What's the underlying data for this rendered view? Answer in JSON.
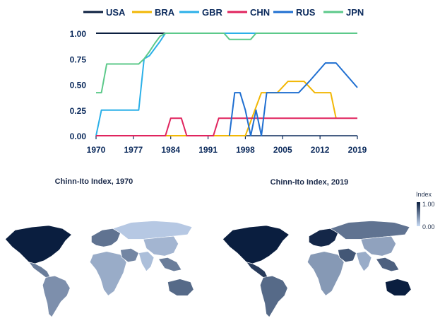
{
  "chart_data": [
    {
      "type": "line",
      "title": "",
      "xlabel": "",
      "ylabel": "",
      "xlim": [
        1970,
        2019
      ],
      "ylim": [
        0,
        1
      ],
      "grid": false,
      "legend_position": "top",
      "x_ticks": [
        "1970",
        "1977",
        "1984",
        "1991",
        "1998",
        "2005",
        "2012",
        "2019"
      ],
      "y_ticks": [
        "0.00",
        "0.25",
        "0.50",
        "0.75",
        "1.00"
      ],
      "series": [
        {
          "name": "USA",
          "color": "#0b1f3f",
          "points": [
            [
              1970,
              1
            ],
            [
              2019,
              1
            ]
          ]
        },
        {
          "name": "BRA",
          "color": "#f2b705",
          "points": [
            [
              1970,
              0
            ],
            [
              1998,
              0
            ],
            [
              2001,
              0.42
            ],
            [
              2004,
              0.42
            ],
            [
              2006,
              0.53
            ],
            [
              2009,
              0.53
            ],
            [
              2011,
              0.42
            ],
            [
              2014,
              0.42
            ],
            [
              2015,
              0.17
            ]
          ]
        },
        {
          "name": "GBR",
          "color": "#2bb0e8",
          "points": [
            [
              1970,
              0
            ],
            [
              1971,
              0.25
            ],
            [
              1978,
              0.25
            ],
            [
              1979,
              0.75
            ],
            [
              1980,
              0.78
            ],
            [
              1982,
              0.92
            ],
            [
              1983,
              1
            ],
            [
              2019,
              1
            ]
          ]
        },
        {
          "name": "CHN",
          "color": "#e0245e",
          "points": [
            [
              1970,
              0
            ],
            [
              1983,
              0
            ],
            [
              1984,
              0.17
            ],
            [
              1986,
              0.17
            ],
            [
              1987,
              0
            ],
            [
              1992,
              0
            ],
            [
              1993,
              0.17
            ],
            [
              2019,
              0.17
            ]
          ]
        },
        {
          "name": "RUS",
          "color": "#1f6fd1",
          "points": [
            [
              1995,
              0
            ],
            [
              1996,
              0.42
            ],
            [
              1997,
              0.42
            ],
            [
              1998,
              0.25
            ],
            [
              1999,
              0
            ],
            [
              2000,
              0.25
            ],
            [
              2001,
              0
            ],
            [
              2002,
              0.42
            ],
            [
              2008,
              0.42
            ],
            [
              2010,
              0.53
            ],
            [
              2013,
              0.71
            ],
            [
              2015,
              0.71
            ],
            [
              2019,
              0.47
            ]
          ]
        },
        {
          "name": "JPN",
          "color": "#5cc98a",
          "points": [
            [
              1970,
              0.42
            ],
            [
              1971,
              0.42
            ],
            [
              1972,
              0.7
            ],
            [
              1978,
              0.7
            ],
            [
              1979,
              0.75
            ],
            [
              1980,
              0.82
            ],
            [
              1981,
              0.9
            ],
            [
              1982,
              0.97
            ],
            [
              1983,
              1
            ],
            [
              1994,
              1
            ],
            [
              1995,
              0.94
            ],
            [
              1999,
              0.94
            ],
            [
              2000,
              1
            ],
            [
              2019,
              1
            ]
          ]
        }
      ]
    },
    {
      "type": "heatmap",
      "title": "Chinn-Ito Index, 1970",
      "colorbar": {
        "title": "Index",
        "min_label": "0.00",
        "max_label": "1.00",
        "min_color": "#c9dbf5",
        "max_color": "#0a1e3f"
      },
      "regions": [
        {
          "name": "North America",
          "value": 1
        },
        {
          "name": "Central America",
          "value": 0.5
        },
        {
          "name": "South America",
          "value": 0.4
        },
        {
          "name": "Europe",
          "value": 0.55
        },
        {
          "name": "Africa",
          "value": 0.25
        },
        {
          "name": "Middle East",
          "value": 0.45
        },
        {
          "name": "Russia",
          "value": 0.1
        },
        {
          "name": "East Asia",
          "value": 0.2
        },
        {
          "name": "South Asia",
          "value": 0.15
        },
        {
          "name": "Southeast Asia",
          "value": 0.5
        },
        {
          "name": "Australia",
          "value": 0.6
        }
      ]
    },
    {
      "type": "heatmap",
      "title": "Chinn-Ito Index, 2019",
      "regions": [
        {
          "name": "North America",
          "value": 1
        },
        {
          "name": "Central America",
          "value": 0.85
        },
        {
          "name": "South America",
          "value": 0.6
        },
        {
          "name": "Europe",
          "value": 0.95
        },
        {
          "name": "Africa",
          "value": 0.35
        },
        {
          "name": "Middle East",
          "value": 0.7
        },
        {
          "name": "Russia",
          "value": 0.55
        },
        {
          "name": "East Asia",
          "value": 0.3
        },
        {
          "name": "South Asia",
          "value": 0.25
        },
        {
          "name": "Southeast Asia",
          "value": 0.65
        },
        {
          "name": "Australia",
          "value": 1
        }
      ]
    }
  ]
}
